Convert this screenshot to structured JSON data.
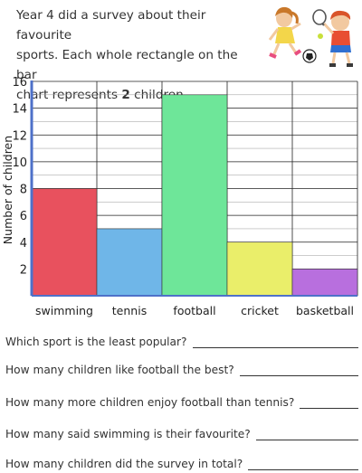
{
  "intro": {
    "line1": "Year 4 did a survey about their favourite",
    "line2_pre": "sports. Each whole rectangle on the bar",
    "line3_pre": "chart represents ",
    "line3_bold": "2",
    "line3_post": " children."
  },
  "illustration": {
    "icon": "children-playing-sports-icon",
    "colors": {
      "girl_shirt": "#f3d64a",
      "boy_shirt": "#e84e32",
      "boy_shorts": "#2f6fd1",
      "ball": "#222222"
    }
  },
  "chart_data": {
    "type": "bar",
    "ylabel": "Number of children",
    "xlabel": "",
    "ylim": [
      0,
      16
    ],
    "yticks": [
      2,
      4,
      6,
      8,
      10,
      12,
      14,
      16
    ],
    "grid": true,
    "categories": [
      "swimming",
      "tennis",
      "football",
      "cricket",
      "basketball"
    ],
    "values": [
      8,
      5,
      15,
      4,
      2
    ],
    "colors": [
      "#e8515e",
      "#6fb6e8",
      "#6ee699",
      "#eaee6a",
      "#b86fde"
    ],
    "axis_color": "#4e71c9"
  },
  "questions": [
    "Which sport is the least popular?",
    "How many children like football the best?",
    "How many more children enjoy football than tennis?",
    "How many said swimming is their favourite?",
    "How many children did the survey in total?"
  ]
}
